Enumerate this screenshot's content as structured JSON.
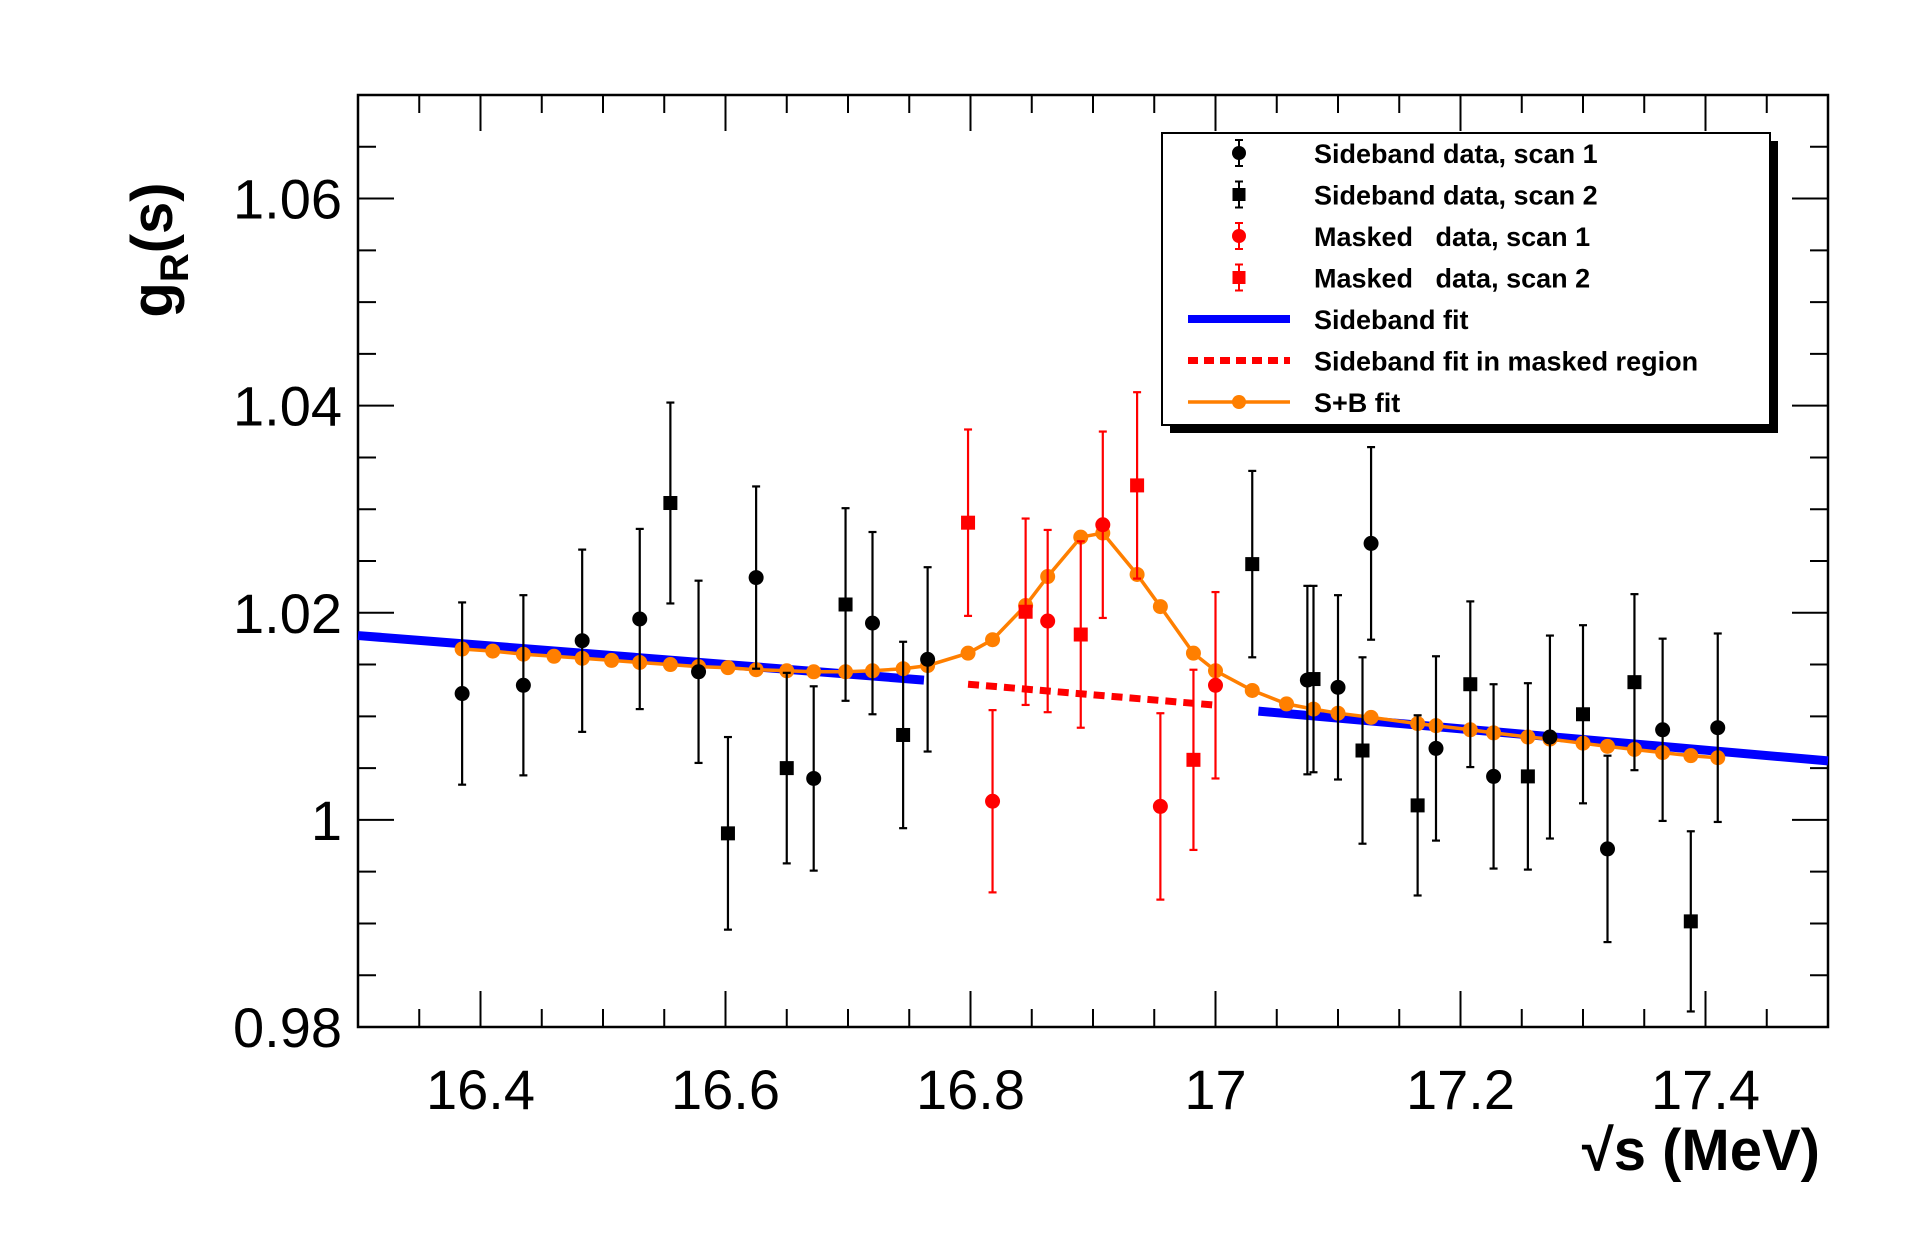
{
  "chart_data": {
    "type": "scatter",
    "title": "",
    "xlabel": "√s (MeV)",
    "ylabel_main": "g",
    "ylabel_sub": "R",
    "ylabel_suffix": "(s)",
    "xlim": [
      16.3,
      17.5
    ],
    "ylim": [
      0.98,
      1.07
    ],
    "xticks": [
      {
        "value": 16.4,
        "label": "16.4"
      },
      {
        "value": 16.6,
        "label": "16.6"
      },
      {
        "value": 16.8,
        "label": "16.8"
      },
      {
        "value": 17.0,
        "label": "17"
      },
      {
        "value": 17.2,
        "label": "17.2"
      },
      {
        "value": 17.4,
        "label": "17.4"
      }
    ],
    "yticks": [
      {
        "value": 0.98,
        "label": "0.98"
      },
      {
        "value": 1.0,
        "label": "1"
      },
      {
        "value": 1.02,
        "label": "1.02"
      },
      {
        "value": 1.04,
        "label": "1.04"
      },
      {
        "value": 1.06,
        "label": "1.06"
      }
    ],
    "legend_position": "top-right",
    "series": [
      {
        "name": "Sideband data, scan 1",
        "marker": "circle",
        "color": "#000000",
        "points": [
          {
            "x": 16.385,
            "y": 1.0122,
            "err": 0.0088
          },
          {
            "x": 16.435,
            "y": 1.013,
            "err": 0.0087
          },
          {
            "x": 16.483,
            "y": 1.0173,
            "err": 0.0088
          },
          {
            "x": 16.53,
            "y": 1.0194,
            "err": 0.0087
          },
          {
            "x": 16.578,
            "y": 1.0143,
            "err": 0.0088
          },
          {
            "x": 16.625,
            "y": 1.0234,
            "err": 0.0088
          },
          {
            "x": 16.672,
            "y": 1.004,
            "err": 0.0089
          },
          {
            "x": 16.72,
            "y": 1.019,
            "err": 0.0088
          },
          {
            "x": 16.765,
            "y": 1.0155,
            "err": 0.0089
          },
          {
            "x": 17.075,
            "y": 1.0135,
            "err": 0.0091
          },
          {
            "x": 17.1,
            "y": 1.0128,
            "err": 0.0089
          },
          {
            "x": 17.127,
            "y": 1.0267,
            "err": 0.0093
          },
          {
            "x": 17.18,
            "y": 1.0069,
            "err": 0.0089
          },
          {
            "x": 17.227,
            "y": 1.0042,
            "err": 0.0089
          },
          {
            "x": 17.273,
            "y": 1.008,
            "err": 0.0098
          },
          {
            "x": 17.32,
            "y": 0.9972,
            "err": 0.009
          },
          {
            "x": 17.365,
            "y": 1.0087,
            "err": 0.0088
          },
          {
            "x": 17.41,
            "y": 1.0089,
            "err": 0.0091
          }
        ]
      },
      {
        "name": "Sideband data, scan 2",
        "marker": "square",
        "color": "#000000",
        "points": [
          {
            "x": 16.555,
            "y": 1.0306,
            "err": 0.0097
          },
          {
            "x": 16.602,
            "y": 0.9987,
            "err": 0.0093
          },
          {
            "x": 16.65,
            "y": 1.005,
            "err": 0.0092
          },
          {
            "x": 16.698,
            "y": 1.0208,
            "err": 0.0093
          },
          {
            "x": 16.745,
            "y": 1.0082,
            "err": 0.009
          },
          {
            "x": 17.03,
            "y": 1.0247,
            "err": 0.009
          },
          {
            "x": 17.08,
            "y": 1.0136,
            "err": 0.009
          },
          {
            "x": 17.12,
            "y": 1.0067,
            "err": 0.009
          },
          {
            "x": 17.165,
            "y": 1.0014,
            "err": 0.0087
          },
          {
            "x": 17.208,
            "y": 1.0131,
            "err": 0.008
          },
          {
            "x": 17.255,
            "y": 1.0042,
            "err": 0.009
          },
          {
            "x": 17.3,
            "y": 1.0102,
            "err": 0.0086
          },
          {
            "x": 17.342,
            "y": 1.0133,
            "err": 0.0085
          },
          {
            "x": 17.388,
            "y": 0.9902,
            "err": 0.0087
          }
        ]
      },
      {
        "name": "Masked   data, scan 1",
        "marker": "circle",
        "color": "#ff0000",
        "points": [
          {
            "x": 16.818,
            "y": 1.0018,
            "err": 0.0088
          },
          {
            "x": 16.863,
            "y": 1.0192,
            "err": 0.0088
          },
          {
            "x": 16.908,
            "y": 1.0285,
            "err": 0.009
          },
          {
            "x": 16.955,
            "y": 1.0013,
            "err": 0.009
          },
          {
            "x": 17.0,
            "y": 1.013,
            "err": 0.009
          }
        ]
      },
      {
        "name": "Masked   data, scan 2",
        "marker": "square",
        "color": "#ff0000",
        "points": [
          {
            "x": 16.798,
            "y": 1.0287,
            "err": 0.009
          },
          {
            "x": 16.845,
            "y": 1.0201,
            "err": 0.009
          },
          {
            "x": 16.89,
            "y": 1.0179,
            "err": 0.009
          },
          {
            "x": 16.936,
            "y": 1.0323,
            "err": 0.009
          },
          {
            "x": 16.982,
            "y": 1.0058,
            "err": 0.0087
          }
        ]
      },
      {
        "name": "Sideband fit",
        "type": "line",
        "color": "#0000ff",
        "segments": [
          [
            [
              16.3,
              1.0178
            ],
            [
              16.762,
              1.0135
            ]
          ],
          [
            [
              17.035,
              1.0105
            ],
            [
              17.5,
              1.0057
            ]
          ]
        ]
      },
      {
        "name": "Sideband fit in masked region",
        "type": "dashed-line",
        "color": "#ff0000",
        "points": [
          [
            16.798,
            1.0131
          ],
          [
            16.998,
            1.0111
          ]
        ]
      },
      {
        "name": "S+B fit",
        "type": "line-markers",
        "color": "#ff7f00",
        "points": [
          [
            16.385,
            1.0165
          ],
          [
            16.41,
            1.0163
          ],
          [
            16.435,
            1.016
          ],
          [
            16.46,
            1.0158
          ],
          [
            16.483,
            1.0156
          ],
          [
            16.507,
            1.0154
          ],
          [
            16.53,
            1.0152
          ],
          [
            16.555,
            1.015
          ],
          [
            16.578,
            1.0148
          ],
          [
            16.602,
            1.0147
          ],
          [
            16.625,
            1.0145
          ],
          [
            16.65,
            1.0144
          ],
          [
            16.672,
            1.0143
          ],
          [
            16.698,
            1.0143
          ],
          [
            16.72,
            1.0144
          ],
          [
            16.745,
            1.0146
          ],
          [
            16.765,
            1.0149
          ],
          [
            16.798,
            1.0161
          ],
          [
            16.818,
            1.0174
          ],
          [
            16.845,
            1.0207
          ],
          [
            16.863,
            1.0235
          ],
          [
            16.89,
            1.0273
          ],
          [
            16.908,
            1.0277
          ],
          [
            16.936,
            1.0237
          ],
          [
            16.955,
            1.0206
          ],
          [
            16.982,
            1.0161
          ],
          [
            17.0,
            1.0144
          ],
          [
            17.03,
            1.0125
          ],
          [
            17.058,
            1.0112
          ],
          [
            17.08,
            1.0107
          ],
          [
            17.1,
            1.0103
          ],
          [
            17.127,
            1.0099
          ],
          [
            17.165,
            1.0093
          ],
          [
            17.18,
            1.0091
          ],
          [
            17.208,
            1.0087
          ],
          [
            17.227,
            1.0084
          ],
          [
            17.255,
            1.008
          ],
          [
            17.273,
            1.0078
          ],
          [
            17.3,
            1.0074
          ],
          [
            17.32,
            1.0071
          ],
          [
            17.342,
            1.0068
          ],
          [
            17.365,
            1.0065
          ],
          [
            17.388,
            1.0062
          ],
          [
            17.41,
            1.006
          ]
        ]
      }
    ]
  }
}
